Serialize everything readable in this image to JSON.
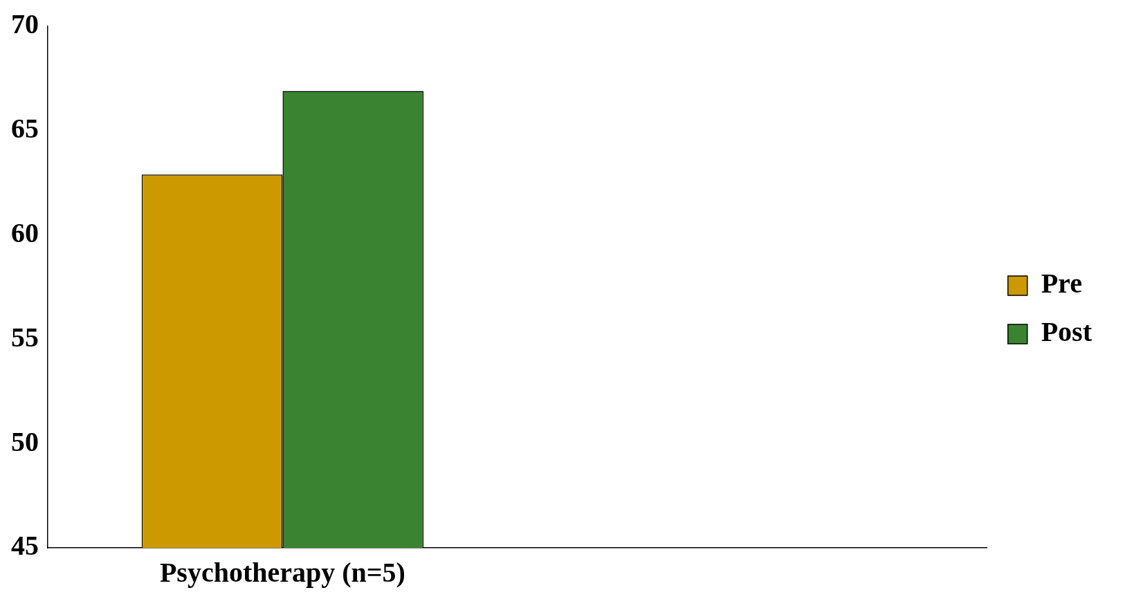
{
  "chart_data": {
    "type": "bar",
    "categories": [
      "Psychotherapy (n=5)",
      null
    ],
    "series": [
      {
        "name": "Pre",
        "color": "#cc9900",
        "values": [
          62.9,
          null
        ]
      },
      {
        "name": "Post",
        "color": "#3a8431",
        "values": [
          66.9,
          null
        ]
      }
    ],
    "ylim": [
      45,
      70
    ],
    "yticks": [
      45,
      50,
      55,
      60,
      65,
      70
    ],
    "grid": false,
    "legend": "right"
  }
}
